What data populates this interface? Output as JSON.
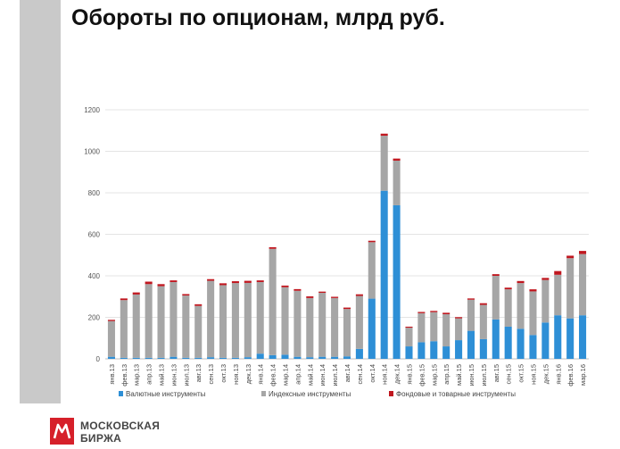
{
  "page": {
    "title": "Обороты по опционам, млрд  руб."
  },
  "logo": {
    "line1": "МОСКОВСКАЯ",
    "line2": "БИРЖА"
  },
  "chart_data": {
    "type": "bar",
    "stacked": true,
    "title": "",
    "xlabel": "",
    "ylabel": "",
    "ylim": [
      0,
      1200
    ],
    "yticks": [
      0,
      200,
      400,
      600,
      800,
      1000,
      1200
    ],
    "grid": true,
    "legend_position": "bottom",
    "categories": [
      "янв.13",
      "фев.13",
      "мар.13",
      "апр.13",
      "май.13",
      "июн.13",
      "июл.13",
      "авг.13",
      "сен.13",
      "окт.13",
      "ноя.13",
      "дек.13",
      "янв.14",
      "фев.14",
      "мар.14",
      "апр.14",
      "май.14",
      "июн.14",
      "июл.14",
      "авг.14",
      "сен.14",
      "окт.14",
      "ноя.14",
      "дек.14",
      "янв.15",
      "фев.15",
      "мар.15",
      "апр.15",
      "май.15",
      "июн.15",
      "июл.15",
      "авг.15",
      "сен.15",
      "окт.15",
      "ноя.15",
      "дек.15",
      "янв.16",
      "фев.16",
      "мар.16"
    ],
    "series": [
      {
        "name": "Валютные инструменты",
        "color": "#2e8fd6",
        "values": [
          10,
          5,
          5,
          5,
          5,
          10,
          5,
          5,
          8,
          5,
          5,
          8,
          25,
          18,
          20,
          10,
          8,
          10,
          10,
          12,
          48,
          290,
          810,
          740,
          60,
          80,
          85,
          60,
          90,
          135,
          95,
          190,
          155,
          145,
          115,
          175,
          210,
          195,
          210
        ]
      },
      {
        "name": "Индексные инструменты",
        "color": "#a6a6a6",
        "values": [
          172,
          278,
          305,
          355,
          345,
          360,
          300,
          250,
          368,
          350,
          360,
          358,
          345,
          512,
          325,
          318,
          285,
          308,
          283,
          228,
          255,
          272,
          265,
          215,
          90,
          140,
          140,
          155,
          105,
          150,
          165,
          210,
          180,
          220,
          210,
          205,
          195,
          290,
          295
        ]
      },
      {
        "name": "Фондовые и товарные инструменты",
        "color": "#c0171f",
        "values": [
          6,
          8,
          10,
          12,
          10,
          8,
          7,
          8,
          8,
          9,
          9,
          10,
          8,
          8,
          8,
          8,
          8,
          6,
          6,
          7,
          8,
          7,
          10,
          10,
          5,
          6,
          6,
          7,
          6,
          6,
          8,
          8,
          8,
          10,
          10,
          10,
          18,
          12,
          15
        ]
      }
    ]
  }
}
